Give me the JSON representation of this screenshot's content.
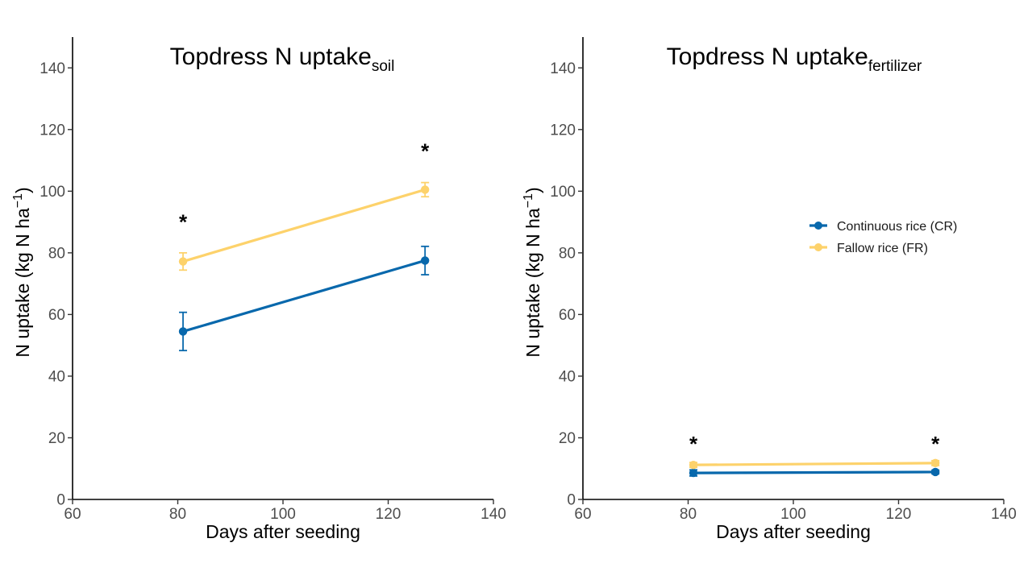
{
  "colors": {
    "cr": "#0868ac",
    "fr": "#fdd26b",
    "axis": "#000000",
    "tick_text": "#4d4d4d"
  },
  "legend": {
    "items": [
      {
        "label": "Continuous rice (CR)",
        "color": "#0868ac"
      },
      {
        "label": "Fallow rice (FR)",
        "color": "#fdd26b"
      }
    ]
  },
  "chart_data": [
    {
      "type": "line",
      "title": "Topdress N uptake",
      "title_subscript": "soil",
      "xlabel": "Days after seeding",
      "ylabel": "N uptake (kg N ha",
      "ylabel_superscript": "−1",
      "ylabel_close": ")",
      "xlim": [
        60,
        140
      ],
      "ylim": [
        0,
        150
      ],
      "x_ticks": [
        60,
        80,
        100,
        120,
        140
      ],
      "y_ticks": [
        0,
        20,
        40,
        60,
        80,
        100,
        120,
        140
      ],
      "grid": false,
      "legend": "none",
      "series": [
        {
          "name": "Continuous rice (CR)",
          "color": "#0868ac",
          "x": [
            81,
            127
          ],
          "y": [
            54.5,
            77.5
          ],
          "err": [
            6.2,
            4.6
          ]
        },
        {
          "name": "Fallow rice (FR)",
          "color": "#fdd26b",
          "x": [
            81,
            127
          ],
          "y": [
            77.2,
            100.5
          ],
          "err": [
            2.8,
            2.3
          ]
        }
      ],
      "annotations": [
        {
          "text": "*",
          "x": 81,
          "y": 90
        },
        {
          "text": "*",
          "x": 127,
          "y": 113
        }
      ]
    },
    {
      "type": "line",
      "title": "Topdress N uptake",
      "title_subscript": "fertilizer",
      "xlabel": "Days after seeding",
      "ylabel": "N uptake (kg N ha",
      "ylabel_superscript": "−1",
      "ylabel_close": ")",
      "xlim": [
        60,
        140
      ],
      "ylim": [
        0,
        150
      ],
      "x_ticks": [
        60,
        80,
        100,
        120,
        140
      ],
      "y_ticks": [
        0,
        20,
        40,
        60,
        80,
        100,
        120,
        140
      ],
      "grid": false,
      "legend": "right",
      "series": [
        {
          "name": "Continuous rice (CR)",
          "color": "#0868ac",
          "x": [
            81,
            127
          ],
          "y": [
            8.6,
            8.9
          ],
          "err": [
            1.0,
            0.6
          ]
        },
        {
          "name": "Fallow rice (FR)",
          "color": "#fdd26b",
          "x": [
            81,
            127
          ],
          "y": [
            11.2,
            11.8
          ],
          "err": [
            0.8,
            0.8
          ]
        }
      ],
      "annotations": [
        {
          "text": "*",
          "x": 81,
          "y": 18
        },
        {
          "text": "*",
          "x": 127,
          "y": 18
        }
      ]
    }
  ]
}
